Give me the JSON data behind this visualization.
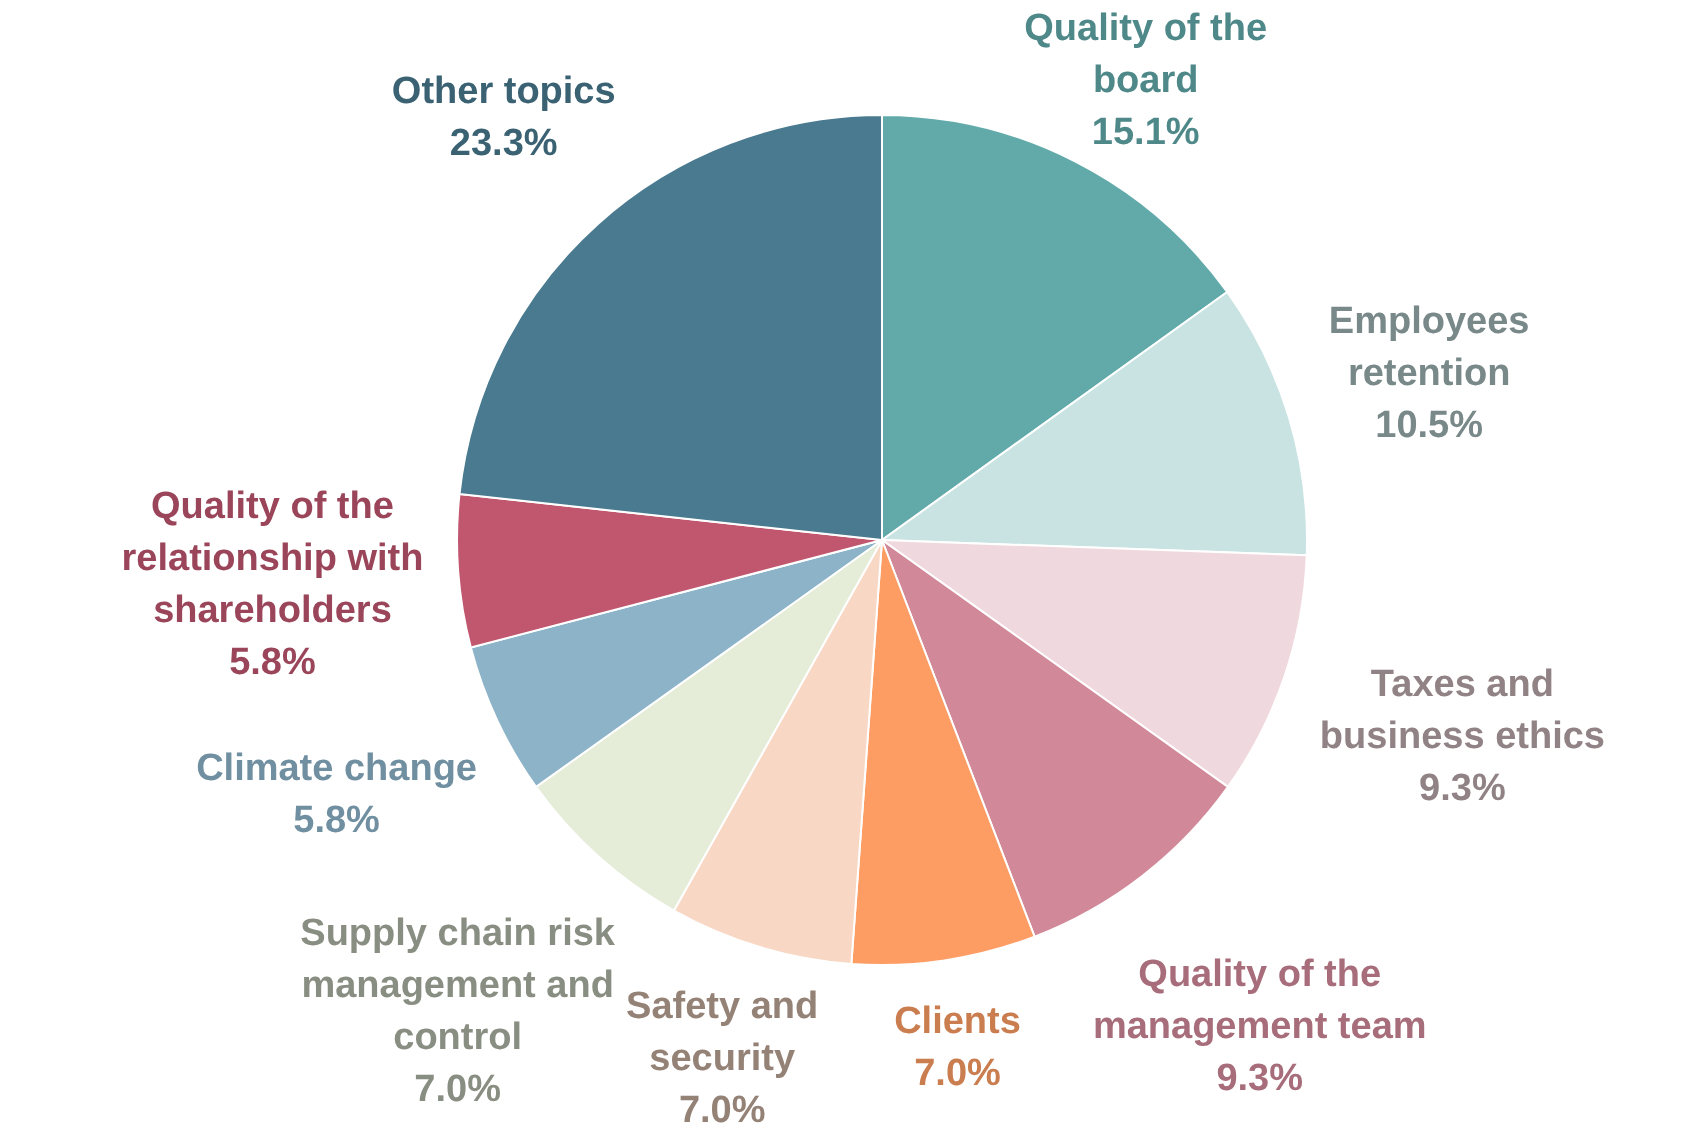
{
  "chart_data": {
    "type": "pie",
    "categories": [
      "Quality of the board",
      "Employees retention",
      "Taxes and business ethics",
      "Quality of the management team",
      "Clients",
      "Safety and security",
      "Supply chain risk management and control",
      "Climate change",
      "Quality of the relationship with shareholders",
      "Other topics"
    ],
    "values": [
      15.1,
      10.5,
      9.3,
      9.3,
      7.0,
      7.0,
      7.0,
      5.8,
      5.8,
      23.3
    ],
    "colors": [
      "#62aaaa",
      "#c9e3e3",
      "#f0d9de",
      "#d18898",
      "#fd9c63",
      "#f8d8c4",
      "#e5ecd8",
      "#8cb3c8",
      "#c1566f",
      "#497a90"
    ],
    "value_labels": [
      "15.1%",
      "10.5%",
      "9.3%",
      "9.3%",
      "7.0%",
      "7.0%",
      "7.0%",
      "5.8%",
      "5.8%",
      "23.3%"
    ],
    "legend": false
  }
}
